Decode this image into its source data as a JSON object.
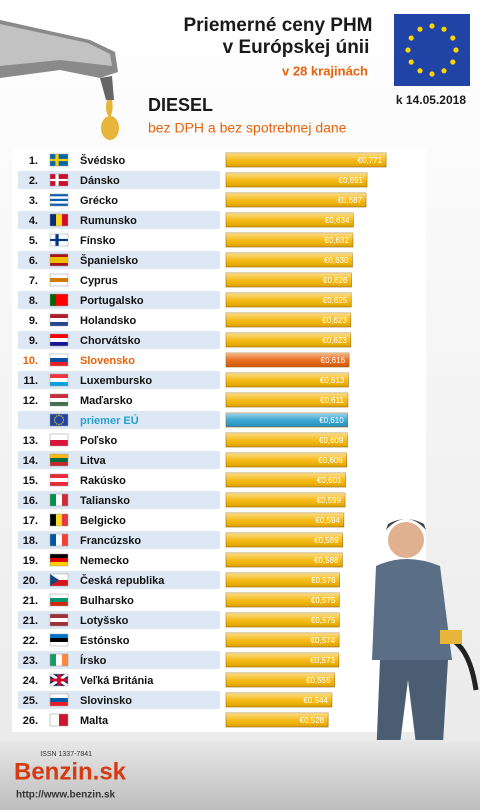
{
  "chart_data": {
    "type": "hbar",
    "title_lines": [
      "Priemerné ceny PHM",
      "v Európskej únii"
    ],
    "subtitle": "v 28 krajinách",
    "fuel": "DIESEL",
    "note": "bez DPH a bez spotrebnej dane",
    "date": "k 14.05.2018",
    "issn": "ISSN 1337-7841",
    "brand": "Benzin.sk",
    "url": "http://www.benzin.sk",
    "ranks": [
      "1.",
      "2.",
      "3.",
      "4.",
      "5.",
      "6.",
      "7.",
      "8.",
      "9.",
      "9.",
      "10.",
      "11.",
      "12.",
      null,
      "13.",
      "14.",
      "15.",
      "16.",
      "17.",
      "18.",
      "19.",
      "20.",
      "21.",
      "21.",
      "22.",
      "23.",
      "24.",
      "25.",
      "26."
    ],
    "categories": [
      "Švédsko",
      "Dánsko",
      "Grécko",
      "Rumunsko",
      "Fínsko",
      "Španielsko",
      "Cyprus",
      "Portugalsko",
      "Holandsko",
      "Chorvátsko",
      "Slovensko",
      "Luxembursko",
      "Maďarsko",
      "priemer EÚ",
      "Poľsko",
      "Litva",
      "Rakúsko",
      "Taliansko",
      "Belgicko",
      "Francúzsko",
      "Nemecko",
      "Česká republika",
      "Bulharsko",
      "Lotyšsko",
      "Estónsko",
      "Írsko",
      "Veľká Británia",
      "Slovinsko",
      "Malta"
    ],
    "values": [
      0.771,
      0.691,
      0.687,
      0.634,
      0.632,
      0.63,
      0.626,
      0.625,
      0.623,
      0.623,
      0.616,
      0.613,
      0.611,
      0.61,
      0.609,
      0.606,
      0.601,
      0.599,
      0.594,
      0.589,
      0.588,
      0.576,
      0.575,
      0.575,
      0.574,
      0.573,
      0.555,
      0.544,
      0.528
    ],
    "value_labels": [
      "€0,771",
      "€0,691",
      "€0,687",
      "€0,634",
      "€0,632",
      "€0,630",
      "€0,626",
      "€0,625",
      "€0,623",
      "€0,623",
      "€0,616",
      "€0,613",
      "€0,611",
      "€0,610",
      "€0,609",
      "€0,606",
      "€0,601",
      "€0,599",
      "€0,594",
      "€0,589",
      "€0,588",
      "€0,576",
      "€0,575",
      "€0,575",
      "€0,574",
      "€0,573",
      "€0,555",
      "€0,544",
      "€0,528"
    ],
    "color": "#f7b500",
    "colors": [
      "#f7b500",
      "#f7b500",
      "#f7b500",
      "#f7b500",
      "#f7b500",
      "#f7b500",
      "#f7b500",
      "#f7b500",
      "#f7b500",
      "#f7b500",
      "#e8620a",
      "#f7b500",
      "#f7b500",
      "#2a9fd0",
      "#f7b500",
      "#f7b500",
      "#f7b500",
      "#f7b500",
      "#f7b500",
      "#f7b500",
      "#f7b500",
      "#f7b500",
      "#f7b500",
      "#f7b500",
      "#f7b500",
      "#f7b500",
      "#f7b500",
      "#f7b500",
      "#f7b500"
    ],
    "xlim": [
      0.1,
      0.8
    ]
  }
}
